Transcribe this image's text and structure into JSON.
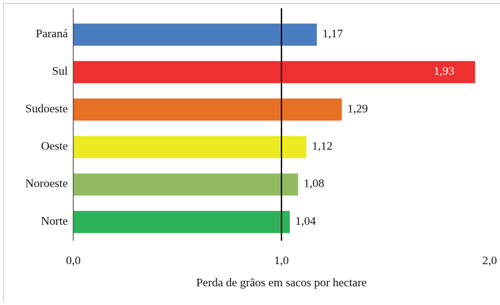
{
  "chart_data": {
    "type": "hbar",
    "categories": [
      "Paraná",
      "Sul",
      "Sudoeste",
      "Oeste",
      "Noroeste",
      "Norte"
    ],
    "values": [
      1.17,
      1.93,
      1.29,
      1.12,
      1.08,
      1.04
    ],
    "value_labels": [
      "1,17",
      "1,93",
      "1,29",
      "1,12",
      "1,08",
      "1,04"
    ],
    "colors": [
      "#4a7cc0",
      "#ee3030",
      "#e87025",
      "#ecea20",
      "#92bb60",
      "#2eb35a"
    ],
    "xlim": [
      0,
      2
    ],
    "xticks": [
      {
        "value": 0,
        "label": "0,0"
      },
      {
        "value": 1,
        "label": "1,0"
      },
      {
        "value": 2,
        "label": "2,0"
      }
    ],
    "reference_line": 1,
    "x_label": "Perda de grãos em sacos por hectare"
  }
}
